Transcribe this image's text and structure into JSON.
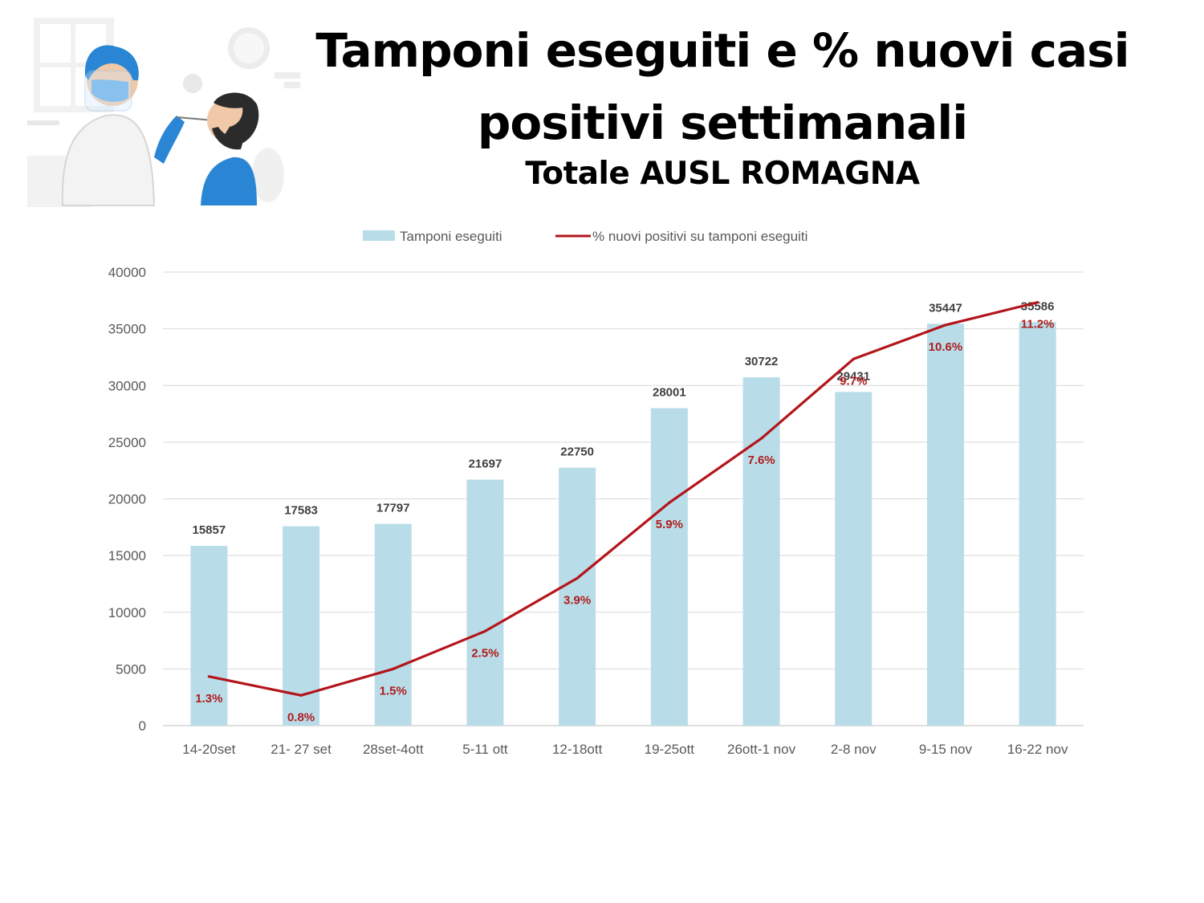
{
  "page": {
    "title_line1": "Tamponi eseguiti e % nuovi casi",
    "title_line2": "positivi settimanali",
    "subtitle": "Totale AUSL ROMAGNA"
  },
  "illustration": {
    "icon": "nasal-swab-test-illustration"
  },
  "chart_data": {
    "type": "bar",
    "categories": [
      "14-20set",
      "21- 27 set",
      "28set-4ott",
      "5-11 ott",
      "12-18ott",
      "19-25ott",
      "26ott-1 nov",
      "2-8 nov",
      "9-15 nov",
      "16-22 nov"
    ],
    "series": [
      {
        "name": "Tamponi eseguiti",
        "type": "bar",
        "color": "#b9dde8",
        "values": [
          15857,
          17583,
          17797,
          21697,
          22750,
          28001,
          30722,
          29431,
          35447,
          35586
        ],
        "labels": [
          "15857",
          "17583",
          "17797",
          "21697",
          "22750",
          "28001",
          "30722",
          "29431",
          "35447",
          "35586"
        ]
      },
      {
        "name": "% nuovi positivi su tamponi eseguiti",
        "type": "line",
        "color": "#b3151b",
        "values": [
          1.3,
          0.8,
          1.5,
          2.5,
          3.9,
          5.9,
          7.6,
          9.7,
          10.6,
          11.2
        ],
        "labels": [
          "1.3%",
          "0.8%",
          "1.5%",
          "2.5%",
          "3.9%",
          "5.9%",
          "7.6%",
          "9.7%",
          "10.6%",
          "11.2%"
        ]
      }
    ],
    "y_ticks": [
      "0",
      "5000",
      "10000",
      "15000",
      "20000",
      "25000",
      "30000",
      "35000",
      "40000"
    ],
    "ylim": [
      0,
      40000
    ],
    "grid": true,
    "legend": "top-center"
  }
}
